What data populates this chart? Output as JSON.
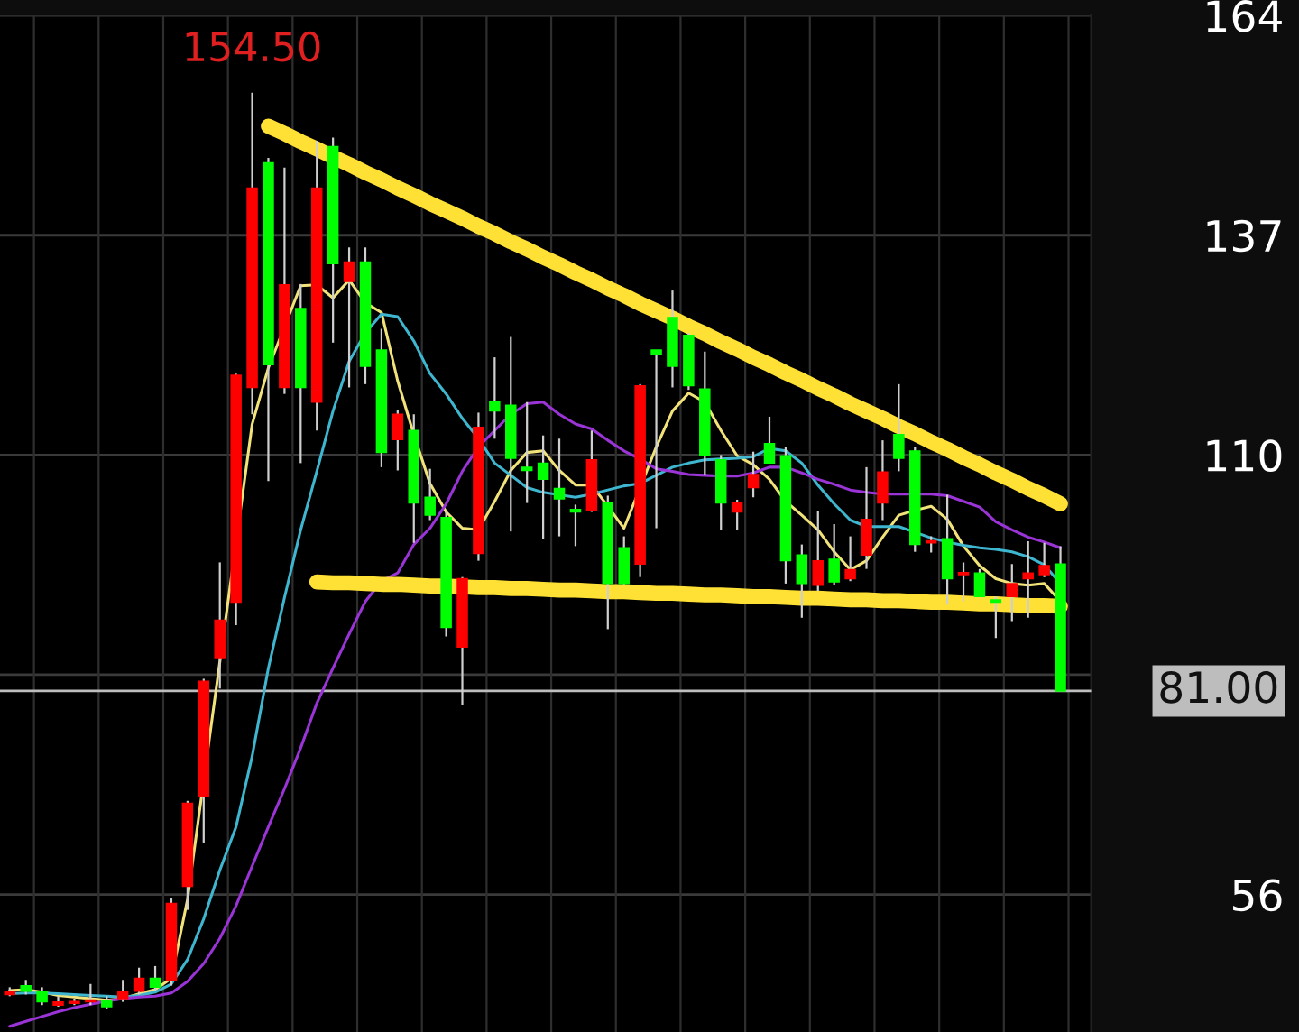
{
  "chart_data": {
    "type": "candlestick",
    "categories": [
      null,
      null,
      null,
      null,
      null,
      null,
      null,
      null,
      null,
      null,
      null,
      null,
      null,
      null,
      null,
      null,
      null,
      null,
      null,
      null,
      null,
      null,
      null,
      null,
      null,
      null,
      null,
      null,
      null,
      null,
      null,
      null,
      null,
      null,
      null,
      null,
      null,
      null,
      null,
      null,
      null,
      null,
      null,
      null,
      null,
      null,
      null,
      null,
      null,
      null,
      null,
      null,
      null,
      null,
      null,
      null,
      null,
      null,
      null,
      null,
      null,
      null,
      null,
      null,
      null,
      null
    ],
    "ohlc": [
      [
        43.7,
        44.6,
        43.5,
        44.1
      ],
      [
        44.8,
        45.5,
        43.7,
        44.1
      ],
      [
        44.1,
        44.6,
        42.4,
        42.8
      ],
      [
        42.4,
        43.5,
        42.2,
        42.8
      ],
      [
        42.6,
        43.2,
        42.4,
        42.8
      ],
      [
        42.8,
        45.0,
        42.4,
        43.0
      ],
      [
        43.0,
        43.5,
        41.9,
        42.2
      ],
      [
        43.2,
        45.5,
        42.8,
        44.1
      ],
      [
        44.1,
        47.0,
        43.7,
        45.7
      ],
      [
        45.7,
        47.2,
        44.1,
        44.6
      ],
      [
        45.5,
        55.5,
        44.8,
        54.9
      ],
      [
        57.0,
        67.5,
        54.1,
        67.2
      ],
      [
        68.0,
        82.5,
        62.3,
        82.2
      ],
      [
        85.1,
        96.8,
        81.3,
        89.7
      ],
      [
        91.9,
        120.0,
        89.1,
        119.8
      ],
      [
        118.3,
        154.5,
        115.0,
        142.8
      ],
      [
        145.9,
        146.5,
        106.8,
        121.1
      ],
      [
        118.3,
        145.3,
        117.5,
        130.9
      ],
      [
        128.0,
        131.0,
        109.0,
        118.3
      ],
      [
        116.5,
        148.6,
        113.0,
        142.8
      ],
      [
        147.9,
        149.0,
        123.8,
        133.5
      ],
      [
        131.3,
        135.5,
        118.3,
        133.7
      ],
      [
        133.7,
        135.5,
        118.7,
        120.9
      ],
      [
        122.9,
        125.5,
        108.5,
        110.3
      ],
      [
        111.9,
        115.5,
        108.1,
        115.0
      ],
      [
        113.0,
        115.0,
        99.2,
        104.1
      ],
      [
        104.8,
        108.3,
        102.0,
        102.6
      ],
      [
        102.3,
        103.0,
        87.7,
        88.8
      ],
      [
        86.4,
        95.0,
        79.3,
        94.8
      ],
      [
        97.9,
        115.2,
        97.0,
        113.4
      ],
      [
        116.5,
        122.0,
        112.0,
        115.4
      ],
      [
        116.1,
        124.5,
        100.6,
        109.6
      ],
      [
        108.5,
        116.5,
        104.1,
        108.1
      ],
      [
        109.0,
        112.4,
        99.7,
        107.0
      ],
      [
        105.9,
        112.0,
        100.0,
        104.6
      ],
      [
        103.3,
        103.9,
        98.8,
        103.0
      ],
      [
        103.2,
        113.0,
        103.0,
        109.4
      ],
      [
        104.1,
        105.0,
        88.6,
        94.2
      ],
      [
        98.6,
        100.0,
        94.0,
        94.2
      ],
      [
        96.6,
        118.7,
        95.0,
        118.5
      ],
      [
        122.9,
        122.9,
        101.0,
        122.4
      ],
      [
        126.9,
        130.2,
        118.3,
        120.9
      ],
      [
        124.7,
        125.0,
        118.0,
        118.5
      ],
      [
        118.1,
        122.7,
        107.5,
        109.9
      ],
      [
        109.4,
        110.0,
        100.8,
        104.1
      ],
      [
        103.0,
        104.5,
        100.8,
        104.1
      ],
      [
        106.0,
        110.4,
        104.8,
        107.6
      ],
      [
        111.4,
        114.7,
        109.0,
        109.0
      ],
      [
        109.9,
        111.0,
        94.2,
        97.0
      ],
      [
        97.7,
        99.0,
        90.0,
        94.2
      ],
      [
        94.0,
        103.1,
        93.3,
        97.0
      ],
      [
        97.2,
        101.5,
        94.0,
        94.4
      ],
      [
        94.8,
        100.0,
        94.5,
        95.9
      ],
      [
        97.7,
        108.5,
        96.0,
        102.1
      ],
      [
        104.1,
        111.8,
        102.0,
        107.9
      ],
      [
        112.5,
        118.7,
        108.0,
        109.6
      ],
      [
        110.5,
        111.0,
        98.1,
        99.0
      ],
      [
        99.2,
        100.0,
        98.0,
        99.4
      ],
      [
        99.7,
        105.1,
        91.6,
        94.8
      ],
      [
        95.3,
        96.8,
        92.0,
        95.5
      ],
      [
        95.5,
        96.0,
        92.5,
        92.6
      ],
      [
        92.2,
        92.6,
        87.5,
        91.9
      ],
      [
        92.6,
        96.6,
        89.6,
        94.2
      ],
      [
        94.8,
        99.4,
        90.0,
        95.5
      ],
      [
        95.3,
        99.2,
        95.0,
        96.4
      ],
      [
        96.6,
        98.8,
        81.0,
        81.0
      ]
    ],
    "colors": [
      "#ff0000",
      "#00ff00",
      "#00ff00",
      "#ff0000",
      "#ff0000",
      "#ff0000",
      "#00ff00",
      "#ff0000",
      "#ff0000",
      "#00ff00",
      "#ff0000",
      "#ff0000",
      "#ff0000",
      "#ff0000",
      "#ff0000",
      "#ff0000",
      "#00ff00",
      "#ff0000",
      "#00ff00",
      "#ff0000",
      "#00ff00",
      "#ff0000",
      "#00ff00",
      "#00ff00",
      "#ff0000",
      "#00ff00",
      "#00ff00",
      "#00ff00",
      "#ff0000",
      "#ff0000",
      "#00ff00",
      "#00ff00",
      "#00ff00",
      "#00ff00",
      "#00ff00",
      "#00ff00",
      "#ff0000",
      "#00ff00",
      "#00ff00",
      "#ff0000",
      "#00ff00",
      "#00ff00",
      "#00ff00",
      "#00ff00",
      "#00ff00",
      "#ff0000",
      "#ff0000",
      "#00ff00",
      "#00ff00",
      "#00ff00",
      "#ff0000",
      "#00ff00",
      "#ff0000",
      "#ff0000",
      "#ff0000",
      "#00ff00",
      "#00ff00",
      "#ff0000",
      "#00ff00",
      "#ff0000",
      "#00ff00",
      "#00ff00",
      "#ff0000",
      "#ff0000",
      "#ff0000",
      "#00ff00"
    ],
    "series": [
      {
        "type": "line",
        "color": "#f2e27a",
        "values": [
          44.2,
          44.3,
          44.0,
          43.6,
          43.4,
          43.2,
          43.0,
          43.2,
          43.8,
          44.3,
          45.7,
          55.4,
          null,
          84.6,
          null,
          113.8,
          120.7,
          null,
          130.8,
          130.9,
          129.3,
          131.5,
          128.7,
          127.5,
          119.1,
          112.5,
          106.5,
          103.0,
          101.0,
          100.8,
          104.3,
          108.1,
          110.3,
          110.5,
          108.1,
          106.3,
          106.3,
          103.7,
          101.0,
          null,
          111.0,
          115.4,
          117.6,
          116.5,
          113.0,
          109.9,
          108.8,
          107.0,
          104.3,
          102.6,
          100.8,
          98.1,
          95.9,
          97.0,
          99.9,
          102.6,
          103.2,
          103.7,
          102.1,
          98.8,
          96.4,
          94.8,
          94.2,
          94.0,
          94.2,
          92.0
        ]
      },
      {
        "type": "line",
        "color": "#3fb6cf",
        "values": [
          43.8,
          43.9,
          43.9,
          43.8,
          43.7,
          43.6,
          43.5,
          43.4,
          43.6,
          44.0,
          45.0,
          48.0,
          53.0,
          59.0,
          64.3,
          73.0,
          83.8,
          92.5,
          100.8,
          108.0,
          115.4,
          121.5,
          125.0,
          127.3,
          127.0,
          124.0,
          120.0,
          117.5,
          114.5,
          112.0,
          109.0,
          107.5,
          106.0,
          105.4,
          105.1,
          104.8,
          105.2,
          105.7,
          106.2,
          106.5,
          107.5,
          108.5,
          109.0,
          109.4,
          109.5,
          109.6,
          109.8,
          110.8,
          110.5,
          109.0,
          106.3,
          104.0,
          102.0,
          101.2,
          101.2,
          101.2,
          100.5,
          99.8,
          99.3,
          98.9,
          98.6,
          98.4,
          98.1,
          97.5,
          96.5,
          94.2
        ]
      },
      {
        "type": "line",
        "color": "#9a34d6",
        "values": [
          39.8,
          40.4,
          41.0,
          41.6,
          42.1,
          42.5,
          42.9,
          43.2,
          43.4,
          43.5,
          43.9,
          45.3,
          47.5,
          50.6,
          54.6,
          59.5,
          64.3,
          69.0,
          74.0,
          79.5,
          83.8,
          88.0,
          92.0,
          94.5,
          95.5,
          99.0,
          101.0,
          104.0,
          108.0,
          111.0,
          113.0,
          115.0,
          116.3,
          116.5,
          115.0,
          113.8,
          113.2,
          111.8,
          110.5,
          109.5,
          108.3,
          108.0,
          107.6,
          107.5,
          107.4,
          107.4,
          107.8,
          108.5,
          108.5,
          107.8,
          107.0,
          106.4,
          105.7,
          105.4,
          105.2,
          105.2,
          105.2,
          105.2,
          105.0,
          104.3,
          103.6,
          101.8,
          100.8,
          99.9,
          99.3,
          98.6
        ]
      },
      {
        "type": "line",
        "color": "#ffe135",
        "values": [
          null,
          null,
          null,
          null,
          null,
          null,
          null,
          null,
          null,
          null,
          null,
          null,
          null,
          null,
          null,
          null,
          150.4,
          149.5,
          148.5,
          147.6,
          146.6,
          145.7,
          144.7,
          143.8,
          142.8,
          141.9,
          140.9,
          140.0,
          139.1,
          138.1,
          137.2,
          136.2,
          135.3,
          134.3,
          133.4,
          132.4,
          131.5,
          130.5,
          129.6,
          128.6,
          127.7,
          126.8,
          125.8,
          124.9,
          123.9,
          123.0,
          122.0,
          121.1,
          120.1,
          119.2,
          118.2,
          117.3,
          116.3,
          115.4,
          114.5,
          113.5,
          112.6,
          111.6,
          110.7,
          109.7,
          108.8,
          107.8,
          106.9,
          105.9,
          105.0,
          104.0
        ]
      },
      {
        "type": "line",
        "color": "#ffe135",
        "values": [
          null,
          null,
          null,
          null,
          null,
          null,
          null,
          null,
          null,
          null,
          null,
          null,
          null,
          null,
          null,
          null,
          null,
          null,
          null,
          94.4,
          94.3,
          94.3,
          94.2,
          94.1,
          94.1,
          94.0,
          93.9,
          93.9,
          93.8,
          93.7,
          93.7,
          93.6,
          93.6,
          93.5,
          93.4,
          93.4,
          93.3,
          93.2,
          93.2,
          93.1,
          93.0,
          93.0,
          92.9,
          92.8,
          92.8,
          92.7,
          92.6,
          92.6,
          92.5,
          92.4,
          92.4,
          92.3,
          92.2,
          92.2,
          92.1,
          92.1,
          92.0,
          91.9,
          91.9,
          91.8,
          91.7,
          91.7,
          91.6,
          91.5,
          91.5,
          91.4
        ]
      }
    ],
    "ylim": [
      39.1,
      164
    ],
    "yticks": [
      164,
      137,
      110,
      {
        "value": 83,
        "label": null
      },
      56
    ],
    "ref_lines": [
      {
        "axis": "y",
        "value": 81,
        "label": "81.00",
        "color": "#bdbdbd"
      }
    ],
    "annotations": [
      "154.50"
    ],
    "grid": "y",
    "tick_labels": "y"
  }
}
